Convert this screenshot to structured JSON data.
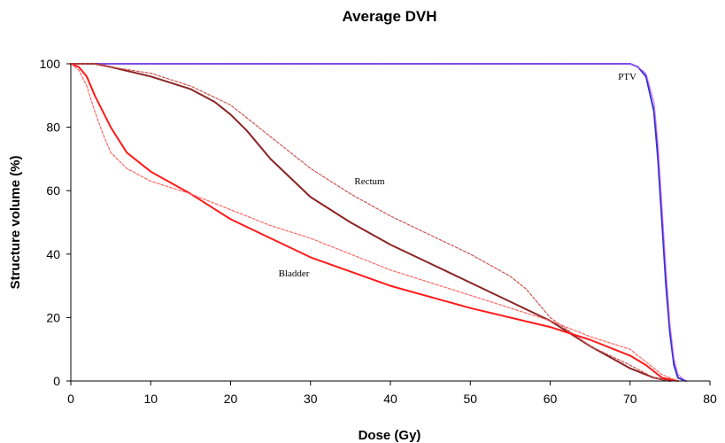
{
  "chart_data": {
    "type": "line",
    "title": "Average DVH",
    "xlabel": "Dose (Gy)",
    "ylabel": "Structure volume (%)",
    "xlim": [
      0,
      80
    ],
    "ylim": [
      0,
      100
    ],
    "x_ticks": [
      "0",
      "10",
      "20",
      "30",
      "40",
      "50",
      "60",
      "70",
      "80"
    ],
    "y_ticks": [
      "0",
      "20",
      "40",
      "60",
      "80",
      "100"
    ],
    "grid": false,
    "legend": "none",
    "annotations": [
      {
        "text": "PTV",
        "x": 68.5,
        "y": 95
      },
      {
        "text": "Rectum",
        "x": 35.5,
        "y": 62
      },
      {
        "text": "Bladder",
        "x": 26,
        "y": 33
      }
    ],
    "series": [
      {
        "color": "#3333cc",
        "style": "solid",
        "x": [
          0,
          65,
          70,
          71,
          72,
          73,
          73.5,
          74,
          74.5,
          75,
          75.5,
          76,
          77
        ],
        "y": [
          100,
          100,
          100,
          99,
          96,
          85,
          70,
          50,
          30,
          15,
          5,
          1,
          0
        ]
      },
      {
        "color": "#cc66ff",
        "style": "dotted",
        "x": [
          0,
          65,
          70,
          71,
          72,
          73,
          73.5,
          74,
          74.5,
          75,
          75.5,
          76,
          77
        ],
        "y": [
          100,
          100,
          100,
          99,
          97,
          88,
          75,
          55,
          35,
          18,
          7,
          2,
          0
        ]
      },
      {
        "color": "#8b2323",
        "style": "solid",
        "x": [
          0,
          3,
          5,
          10,
          15,
          18,
          20,
          22,
          25,
          30,
          35,
          40,
          45,
          50,
          55,
          60,
          65,
          70,
          73,
          75
        ],
        "y": [
          100,
          100,
          99,
          96,
          92,
          88,
          84,
          79,
          70,
          58,
          50,
          43,
          37,
          31,
          25,
          19,
          11,
          4,
          1,
          0
        ]
      },
      {
        "color": "#cc5555",
        "style": "dashed",
        "x": [
          0,
          3,
          5,
          10,
          15,
          20,
          25,
          30,
          35,
          40,
          45,
          50,
          55,
          57,
          60,
          65,
          70,
          73,
          75
        ],
        "y": [
          100,
          100,
          99,
          97,
          93,
          87,
          77,
          67,
          59,
          52,
          46,
          40,
          33,
          29,
          20,
          11,
          5,
          1,
          0
        ]
      },
      {
        "color": "#ff1a1a",
        "style": "solid",
        "x": [
          0,
          1,
          2,
          3,
          4,
          5,
          7,
          10,
          15,
          20,
          25,
          30,
          40,
          50,
          60,
          65,
          70,
          72,
          74,
          76
        ],
        "y": [
          100,
          99,
          96,
          90,
          85,
          80,
          72,
          66,
          59,
          51,
          45,
          39,
          30,
          23,
          17,
          13,
          8,
          5,
          1,
          0
        ]
      },
      {
        "color": "#ff6666",
        "style": "dashed",
        "x": [
          0,
          1,
          2,
          3,
          4,
          5,
          7,
          10,
          15,
          20,
          25,
          30,
          40,
          50,
          60,
          65,
          70,
          72,
          74,
          76
        ],
        "y": [
          100,
          98,
          93,
          85,
          78,
          72,
          67,
          63,
          59,
          54,
          49,
          45,
          35,
          27,
          19,
          14,
          10,
          6,
          2,
          0
        ]
      }
    ]
  }
}
